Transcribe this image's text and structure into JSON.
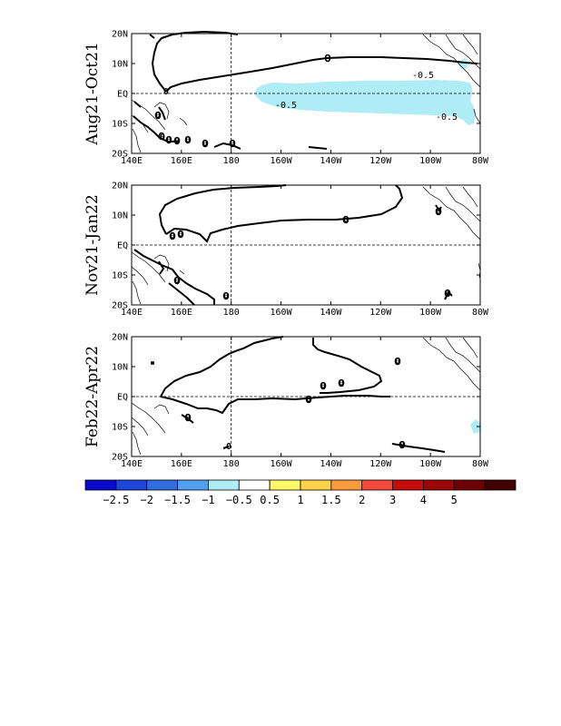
{
  "chart_data": [
    {
      "type": "contour-map",
      "title": "Aug21-Oct21",
      "x_tick_labels": [
        "140E",
        "160E",
        "180",
        "160W",
        "140W",
        "120W",
        "100W",
        "80W"
      ],
      "y_tick_labels": [
        "20N",
        "10N",
        "EQ",
        "10S",
        "20S"
      ],
      "xlim": [
        "140E",
        "80W"
      ],
      "ylim": [
        "20S",
        "20N"
      ],
      "contour_labels": [
        "0",
        "0",
        "0",
        "0",
        "0",
        "0",
        "0",
        "0",
        "-0.5",
        "-0.5",
        "-0.5"
      ],
      "shaded_regions": [
        {
          "range": "-1 to -0.5",
          "color": "#b0ecf5",
          "location": "equatorial eastern Pacific 170W-80W, 5S-2N"
        }
      ]
    },
    {
      "type": "contour-map",
      "title": "Nov21-Jan22",
      "x_tick_labels": [
        "140E",
        "160E",
        "180",
        "160W",
        "140W",
        "120W",
        "100W",
        "80W"
      ],
      "y_tick_labels": [
        "20N",
        "10N",
        "EQ",
        "10S",
        "20S"
      ],
      "xlim": [
        "140E",
        "80W"
      ],
      "ylim": [
        "20S",
        "20N"
      ],
      "contour_labels": [
        "0",
        "0",
        "0",
        "0",
        "0",
        "0",
        "0"
      ],
      "shaded_regions": []
    },
    {
      "type": "contour-map",
      "title": "Feb22-Apr22",
      "x_tick_labels": [
        "140E",
        "160E",
        "180",
        "160W",
        "140W",
        "120W",
        "100W",
        "80W"
      ],
      "y_tick_labels": [
        "20N",
        "10N",
        "EQ",
        "10S",
        "20S"
      ],
      "xlim": [
        "140E",
        "80W"
      ],
      "ylim": [
        "20S",
        "20N"
      ],
      "contour_labels": [
        "0",
        "0",
        "0",
        "0",
        "0",
        "0",
        "0"
      ],
      "shaded_regions": [
        {
          "range": "-1 to -0.5",
          "color": "#b0ecf5",
          "location": "small patch near 82W, 10S"
        }
      ]
    }
  ],
  "colorbar": {
    "colors": [
      "#0a0acc",
      "#1e46d8",
      "#2f6fe0",
      "#52a0ef",
      "#b0ecf5",
      "#ffffff",
      "#fff86a",
      "#fdd24a",
      "#fd9a3c",
      "#f44a3c",
      "#c70c0c",
      "#9c0606",
      "#6e0000",
      "#430000"
    ],
    "labels": [
      "-2.5",
      "-2",
      "-1.5",
      "-1",
      "-0.5",
      "0.5",
      "1",
      "1.5",
      "2",
      "3",
      "4",
      "5"
    ]
  }
}
